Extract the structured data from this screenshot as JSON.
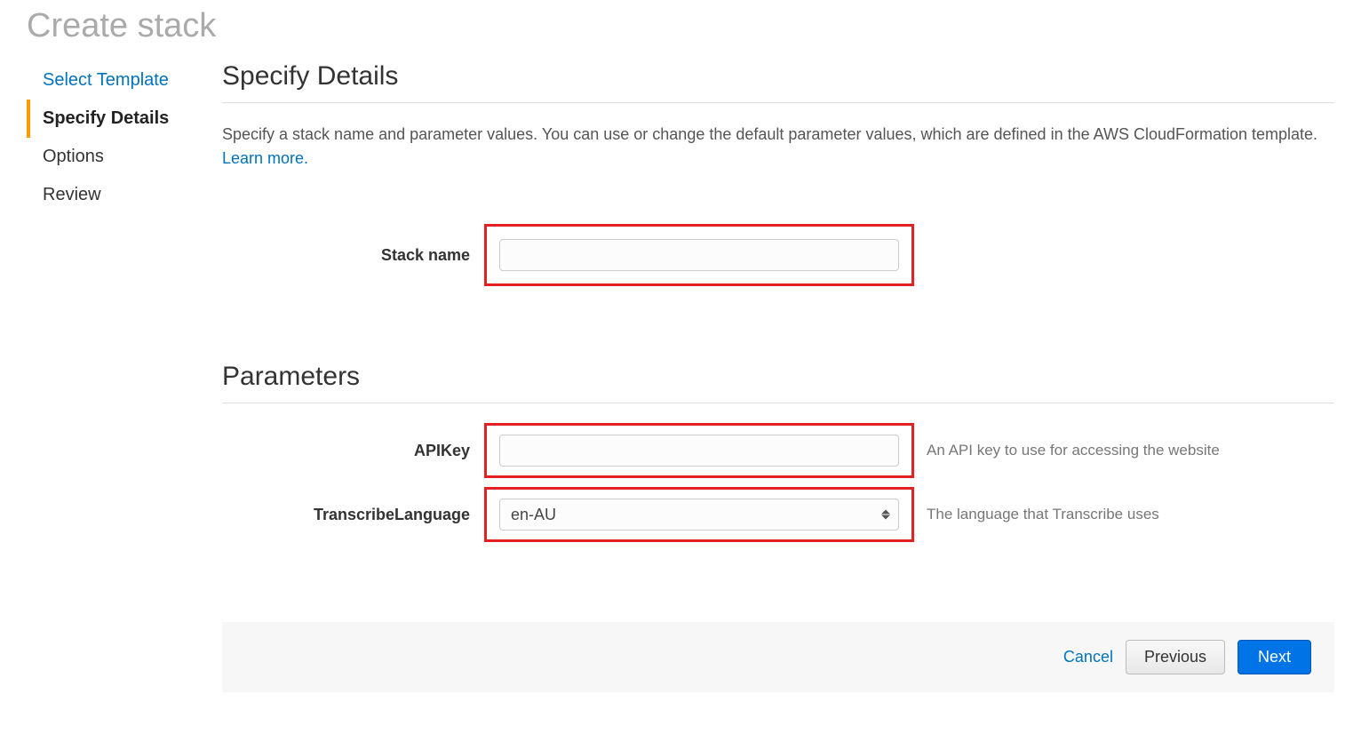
{
  "page": {
    "title": "Create stack"
  },
  "sidebar": {
    "items": [
      {
        "label": "Select Template",
        "active": false,
        "link": true
      },
      {
        "label": "Specify Details",
        "active": true,
        "link": false
      },
      {
        "label": "Options",
        "active": false,
        "link": false
      },
      {
        "label": "Review",
        "active": false,
        "link": false
      }
    ]
  },
  "main": {
    "section1_heading": "Specify Details",
    "description": "Specify a stack name and parameter values. You can use or change the default parameter values, which are defined in the AWS CloudFormation template. ",
    "learn_more": "Learn more.",
    "stack_name_label": "Stack name",
    "stack_name_value": "",
    "section2_heading": "Parameters",
    "parameters": [
      {
        "label": "APIKey",
        "type": "text",
        "value": "",
        "hint": "An API key to use for accessing the website"
      },
      {
        "label": "TranscribeLanguage",
        "type": "select",
        "value": "en-AU",
        "hint": "The language that Transcribe uses"
      }
    ]
  },
  "footer": {
    "cancel": "Cancel",
    "previous": "Previous",
    "next": "Next"
  },
  "styles": {
    "highlight_color": "#e42020",
    "link_color": "#0073bb",
    "primary_button_bg": "#0073e6",
    "active_indicator": "#ff9900",
    "title_color": "#aaaaaa",
    "footer_bg": "#f7f7f7"
  }
}
